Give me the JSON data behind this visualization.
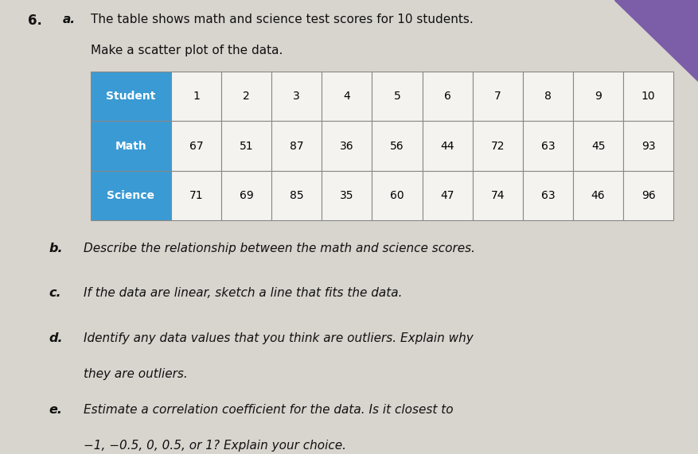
{
  "background_color": "#d8d4ce",
  "header_bg": "#3a9ad4",
  "header_text_color": "#ffffff",
  "cell_bg": "#f5f3f0",
  "cell_text_color": "#000000",
  "border_color": "#888888",
  "problem_number": "6.",
  "part_a_label": "a.",
  "part_a_text1": "The table shows math and science test scores for 10 students.",
  "part_a_text2": "Make a scatter plot of the data.",
  "part_b": "b.  Describe the relationship between the math and science scores.",
  "part_c": "c.  If the data are linear, sketch a line that fits the data.",
  "part_d1": "d.  Identify any data values that you think are outliers. Explain why",
  "part_d2": "     they are outliers.",
  "part_e1": "e.  Estimate a correlation coefficient for the data. Is it closest to",
  "part_e2": "     −1, −0.5, 0, 0.5, or 1? Explain your choice.",
  "students": [
    1,
    2,
    3,
    4,
    5,
    6,
    7,
    8,
    9,
    10
  ],
  "math": [
    67,
    51,
    87,
    36,
    56,
    44,
    72,
    63,
    45,
    93
  ],
  "science": [
    71,
    69,
    85,
    35,
    60,
    47,
    74,
    63,
    46,
    96
  ],
  "row_labels": [
    "Student",
    "Math",
    "Science"
  ],
  "fig_width": 8.77,
  "fig_height": 5.71,
  "dpi": 100,
  "corner_color": "#7b5ea7"
}
